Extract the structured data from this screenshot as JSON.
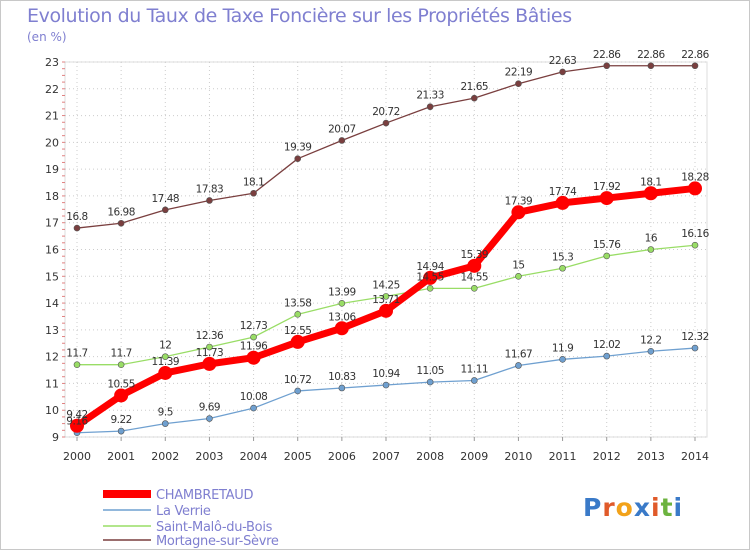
{
  "title": "Evolution du Taux de Taxe Foncière sur les Propriétés Bâties",
  "unit": "(en %)",
  "logo": "Proxiti",
  "colors": {
    "title": "#7f7fd0",
    "grid": "#cccccc",
    "axis_label": "#333333",
    "CHAMBRETAUD": "#ff0000",
    "La Verrie": "#6fa0d0",
    "Saint-Malô-du-Bois": "#99dd66",
    "Mortagne-sur-Sèvre": "#7a3f3f"
  },
  "chart_data": {
    "type": "line",
    "title": "Evolution du Taux de Taxe Foncière sur les Propriétés Bâties",
    "ylabel": "(en %)",
    "xlabel": "",
    "ylim": [
      9,
      23
    ],
    "yticks": [
      9,
      10,
      11,
      12,
      13,
      14,
      15,
      16,
      17,
      18,
      19,
      20,
      21,
      22,
      23
    ],
    "grid": true,
    "legend_placement": "bottom-left",
    "x": [
      "2000",
      "2001",
      "2002",
      "2003",
      "2004",
      "2005",
      "2006",
      "2007",
      "2008",
      "2009",
      "2010",
      "2011",
      "2012",
      "2013",
      "2014"
    ],
    "series": [
      {
        "name": "CHAMBRETAUD",
        "values": [
          9.42,
          10.55,
          11.39,
          11.73,
          11.96,
          12.55,
          13.06,
          13.71,
          14.94,
          15.39,
          17.39,
          17.74,
          17.92,
          18.1,
          18.28
        ],
        "labels": [
          "9.42",
          "10.55",
          "11.39",
          "11.73",
          "11.96",
          "12.55",
          "13.06",
          "13.71",
          "14.94",
          "15.39",
          "17.39",
          "17.74",
          "17.92",
          "18.1",
          "18.28"
        ]
      },
      {
        "name": "La Verrie",
        "values": [
          9.16,
          9.22,
          9.5,
          9.69,
          10.08,
          10.72,
          10.83,
          10.94,
          11.05,
          11.11,
          11.67,
          11.9,
          12.02,
          12.2,
          12.32
        ],
        "labels": [
          "9.16",
          "9.22",
          "9.5",
          "9.69",
          "10.08",
          "10.72",
          "10.83",
          "10.94",
          "11.05",
          "11.11",
          "11.67",
          "11.9",
          "12.02",
          "12.2",
          "12.32"
        ]
      },
      {
        "name": "Saint-Malô-du-Bois",
        "values": [
          11.7,
          11.7,
          12,
          12.36,
          12.73,
          13.58,
          13.99,
          14.25,
          14.55,
          14.55,
          15,
          15.3,
          15.76,
          16,
          16.16
        ],
        "labels": [
          "11.7",
          "11.7",
          "12",
          "12.36",
          "12.73",
          "13.58",
          "13.99",
          "14.25",
          "14.55",
          "14.55",
          "15",
          "15.3",
          "15.76",
          "16",
          "16.16"
        ]
      },
      {
        "name": "Mortagne-sur-Sèvre",
        "values": [
          16.8,
          16.98,
          17.48,
          17.83,
          18.1,
          19.39,
          20.07,
          20.72,
          21.33,
          21.65,
          22.19,
          22.63,
          22.86,
          22.86,
          22.86
        ],
        "labels": [
          "16.8",
          "16.98",
          "17.48",
          "17.83",
          "18.1",
          "19.39",
          "20.07",
          "20.72",
          "21.33",
          "21.65",
          "22.19",
          "22.63",
          "22.86",
          "22.86",
          "22.86"
        ]
      }
    ]
  }
}
